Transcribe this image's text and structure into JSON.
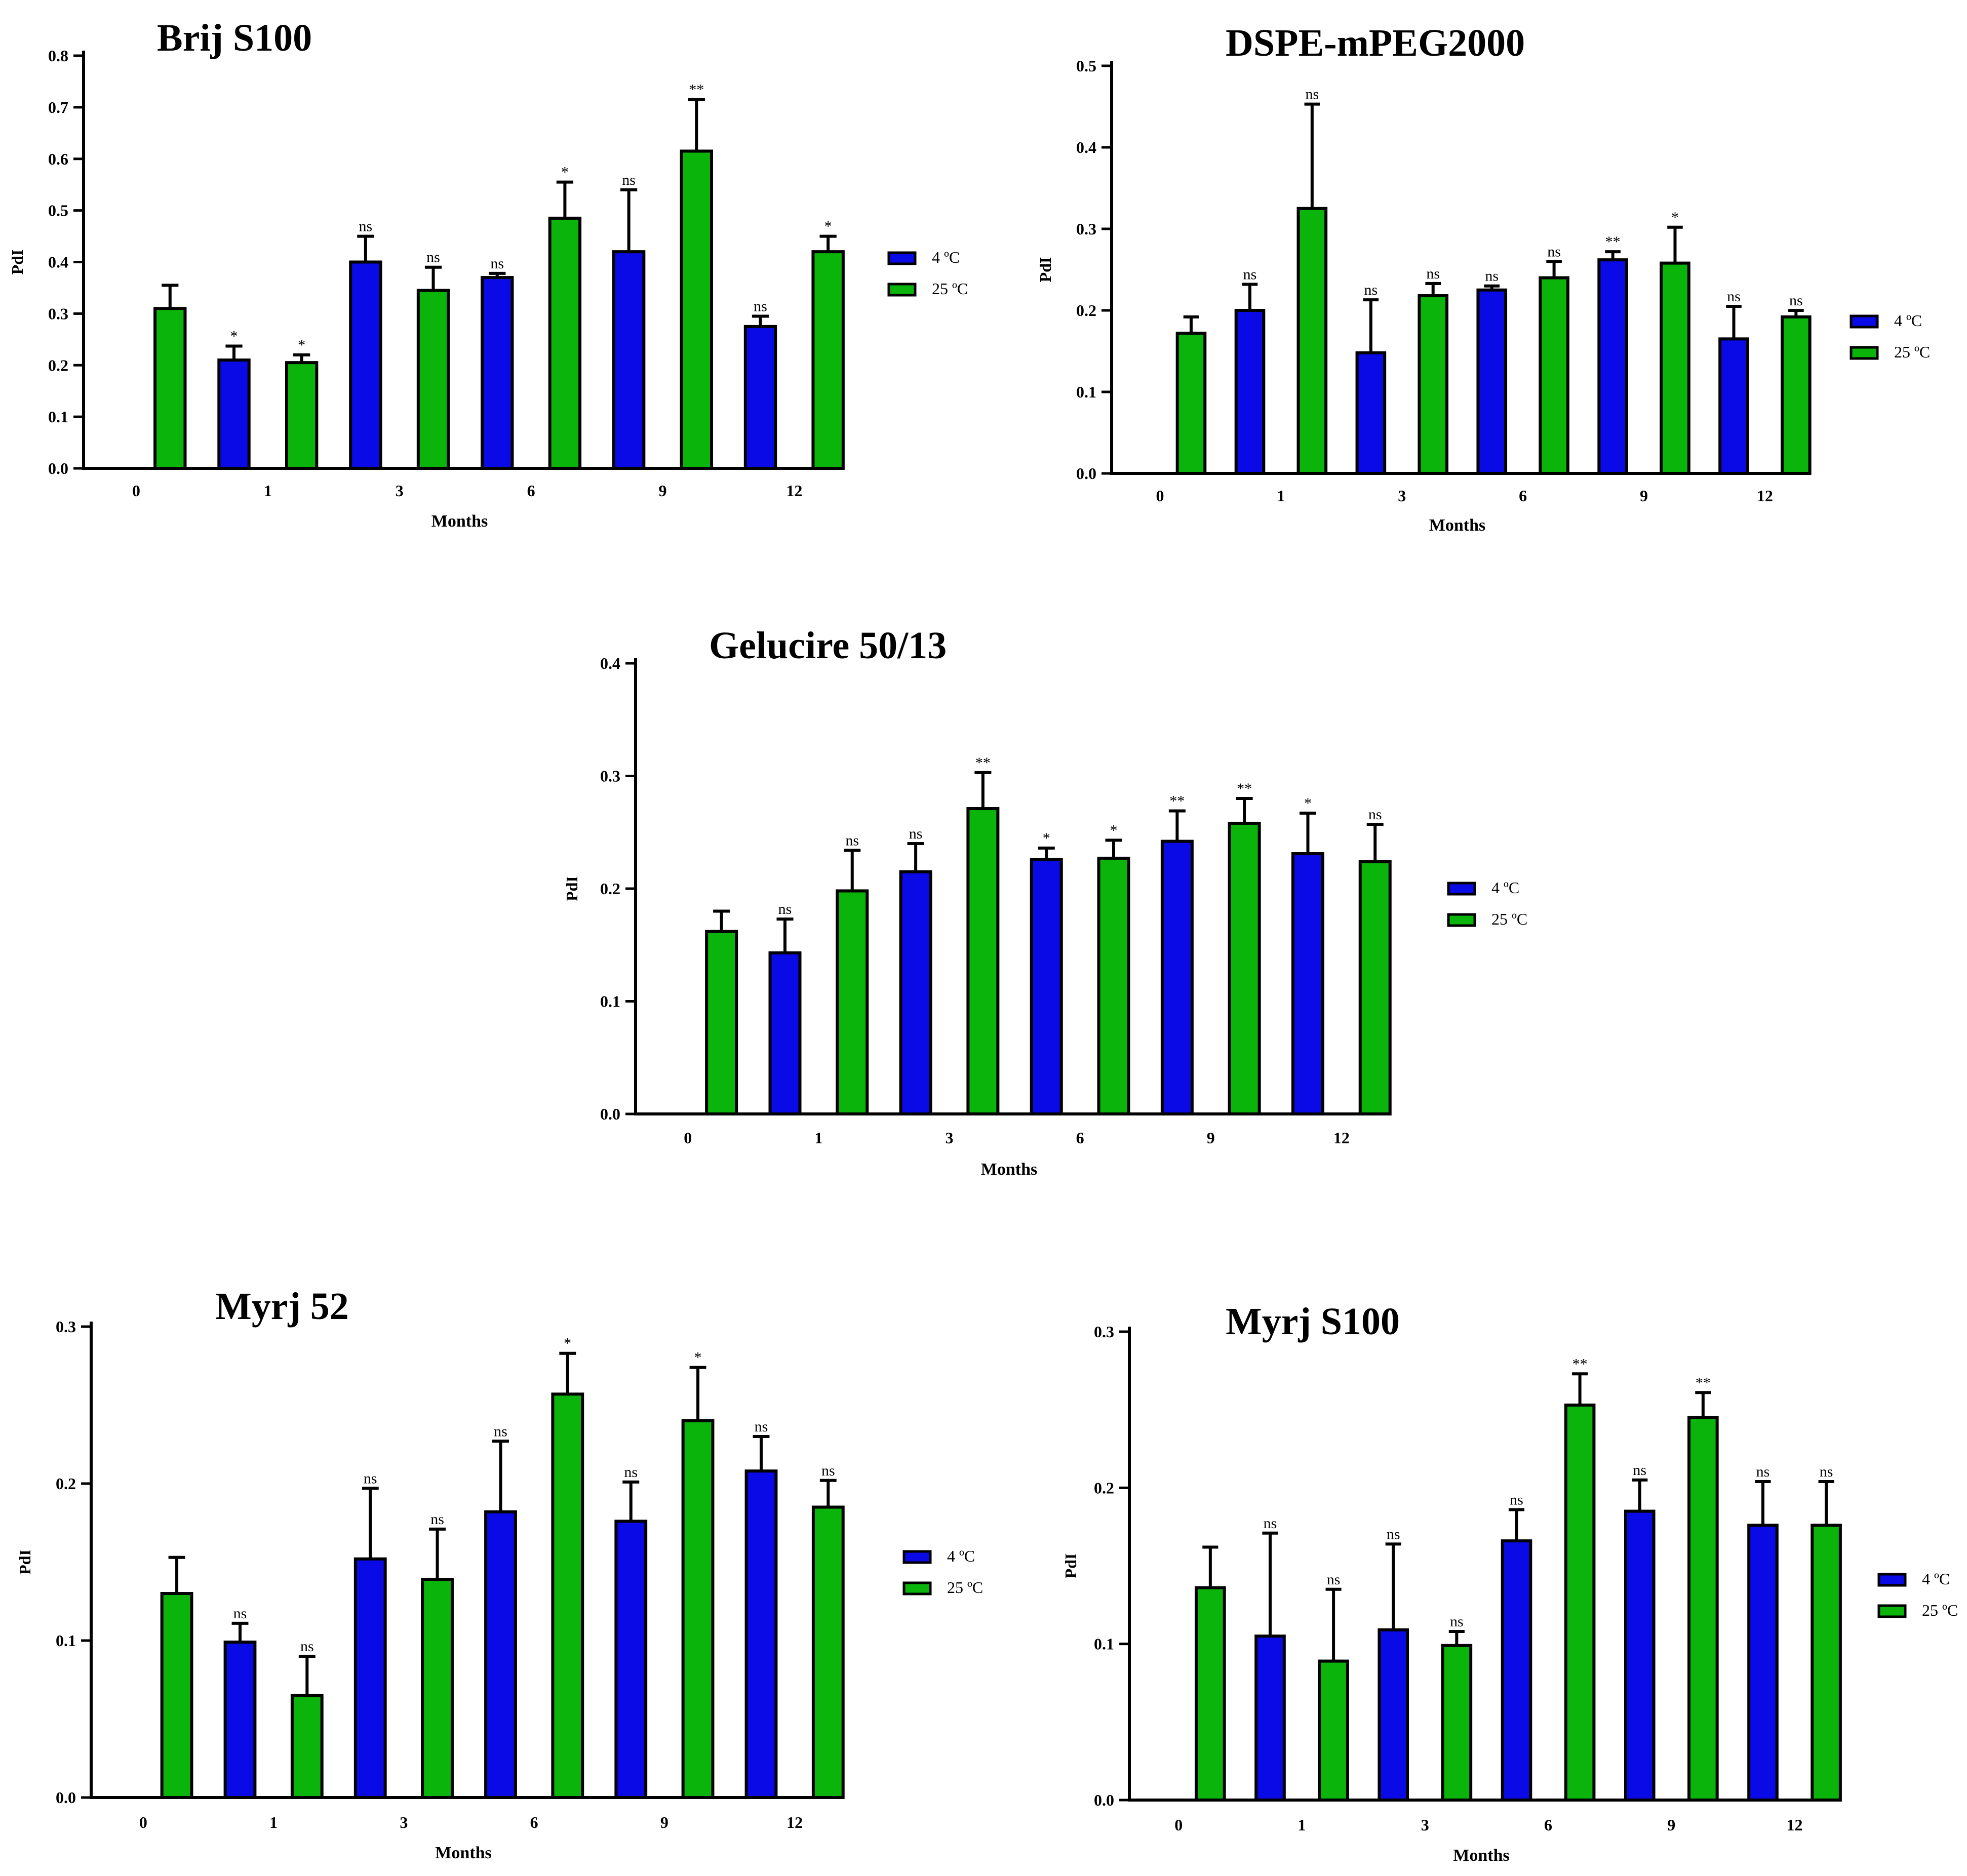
{
  "colors": {
    "c4": "#0a0ae6",
    "c25": "#0ab40a",
    "axis": "#000000"
  },
  "chart_data": [
    {
      "type": "bar",
      "title": "Brij S100",
      "xlabel": "Months",
      "ylabel": "PdI",
      "ylim": [
        0,
        0.8
      ],
      "yticks": [
        "0.0",
        "0.1",
        "0.2",
        "0.3",
        "0.4",
        "0.5",
        "0.6",
        "0.7",
        "0.8"
      ],
      "categories": [
        "0",
        "1",
        "3",
        "6",
        "9",
        "12"
      ],
      "legend_position": "right",
      "series": [
        {
          "name": "4 ºC",
          "values": [
            null,
            0.21,
            0.4,
            0.37,
            0.42,
            0.275
          ],
          "errors": [
            null,
            0.027,
            0.05,
            0.008,
            0.12,
            0.02
          ],
          "sig": [
            "",
            "*",
            "ns",
            "ns",
            "ns",
            "ns"
          ]
        },
        {
          "name": "25 ºC",
          "values": [
            0.31,
            0.205,
            0.345,
            0.485,
            0.615,
            0.42
          ],
          "errors": [
            0.045,
            0.015,
            0.045,
            0.07,
            0.1,
            0.03
          ],
          "sig": [
            "",
            "*",
            "ns",
            "*",
            "**",
            "*"
          ]
        }
      ]
    },
    {
      "type": "bar",
      "title": "DSPE-mPEG2000",
      "xlabel": "Months",
      "ylabel": "PdI",
      "ylim": [
        0,
        0.5
      ],
      "yticks": [
        "0.0",
        "0.1",
        "0.2",
        "0.3",
        "0.4",
        "0.5"
      ],
      "categories": [
        "0",
        "1",
        "3",
        "6",
        "9",
        "12"
      ],
      "legend_position": "right",
      "series": [
        {
          "name": "4 ºC",
          "values": [
            null,
            0.2,
            0.148,
            0.225,
            0.262,
            0.165
          ],
          "errors": [
            null,
            0.032,
            0.065,
            0.005,
            0.01,
            0.04
          ],
          "sig": [
            "",
            "ns",
            "ns",
            "ns",
            "**",
            "ns"
          ]
        },
        {
          "name": "25 ºC",
          "values": [
            0.172,
            0.325,
            0.218,
            0.24,
            0.258,
            0.192
          ],
          "errors": [
            0.02,
            0.128,
            0.015,
            0.02,
            0.044,
            0.008
          ],
          "sig": [
            "",
            "ns",
            "ns",
            "ns",
            "*",
            "ns"
          ]
        }
      ]
    },
    {
      "type": "bar",
      "title": "Gelucire 50/13",
      "xlabel": "Months",
      "ylabel": "PdI",
      "ylim": [
        0,
        0.4
      ],
      "yticks": [
        "0.0",
        "0.1",
        "0.2",
        "0.3",
        "0.4"
      ],
      "categories": [
        "0",
        "1",
        "3",
        "6",
        "9",
        "12"
      ],
      "legend_position": "right",
      "series": [
        {
          "name": "4 ºC",
          "values": [
            null,
            0.143,
            0.215,
            0.226,
            0.242,
            0.231
          ],
          "errors": [
            null,
            0.03,
            0.025,
            0.01,
            0.027,
            0.036
          ],
          "sig": [
            "",
            "ns",
            "ns",
            "*",
            "**",
            "*"
          ]
        },
        {
          "name": "25 ºC",
          "values": [
            0.162,
            0.198,
            0.271,
            0.227,
            0.258,
            0.224
          ],
          "errors": [
            0.018,
            0.036,
            0.032,
            0.016,
            0.022,
            0.033
          ],
          "sig": [
            "",
            "ns",
            "**",
            "*",
            "**",
            "ns"
          ]
        }
      ]
    },
    {
      "type": "bar",
      "title": "Myrj 52",
      "xlabel": "Months",
      "ylabel": "PdI",
      "ylim": [
        0,
        0.3
      ],
      "yticks": [
        "0.0",
        "0.1",
        "0.2",
        "0.3"
      ],
      "categories": [
        "0",
        "1",
        "3",
        "6",
        "9",
        "12"
      ],
      "legend_position": "right",
      "series": [
        {
          "name": "4 ºC",
          "values": [
            null,
            0.099,
            0.152,
            0.182,
            0.176,
            0.208
          ],
          "errors": [
            null,
            0.012,
            0.045,
            0.045,
            0.025,
            0.022
          ],
          "sig": [
            "",
            "ns",
            "ns",
            "ns",
            "ns",
            "ns"
          ]
        },
        {
          "name": "25 ºC",
          "values": [
            0.13,
            0.065,
            0.139,
            0.257,
            0.24,
            0.185
          ],
          "errors": [
            0.023,
            0.025,
            0.032,
            0.026,
            0.034,
            0.017
          ],
          "sig": [
            "",
            "ns",
            "ns",
            "*",
            "*",
            "ns"
          ]
        }
      ]
    },
    {
      "type": "bar",
      "title": "Myrj S100",
      "xlabel": "Months",
      "ylabel": "PdI",
      "ylim": [
        0,
        0.3
      ],
      "yticks": [
        "0.0",
        "0.1",
        "0.2",
        "0.3"
      ],
      "categories": [
        "0",
        "1",
        "3",
        "6",
        "9",
        "12"
      ],
      "legend_position": "right",
      "series": [
        {
          "name": "4 ºC",
          "values": [
            null,
            0.105,
            0.109,
            0.166,
            0.185,
            0.176
          ],
          "errors": [
            null,
            0.066,
            0.055,
            0.02,
            0.02,
            0.028
          ],
          "sig": [
            "",
            "ns",
            "ns",
            "ns",
            "ns",
            "ns"
          ]
        },
        {
          "name": "25 ºC",
          "values": [
            0.136,
            0.089,
            0.099,
            0.253,
            0.245,
            0.176
          ],
          "errors": [
            0.026,
            0.046,
            0.009,
            0.02,
            0.016,
            0.028
          ],
          "sig": [
            "",
            "ns",
            "ns",
            "**",
            "**",
            "ns"
          ]
        }
      ]
    }
  ]
}
